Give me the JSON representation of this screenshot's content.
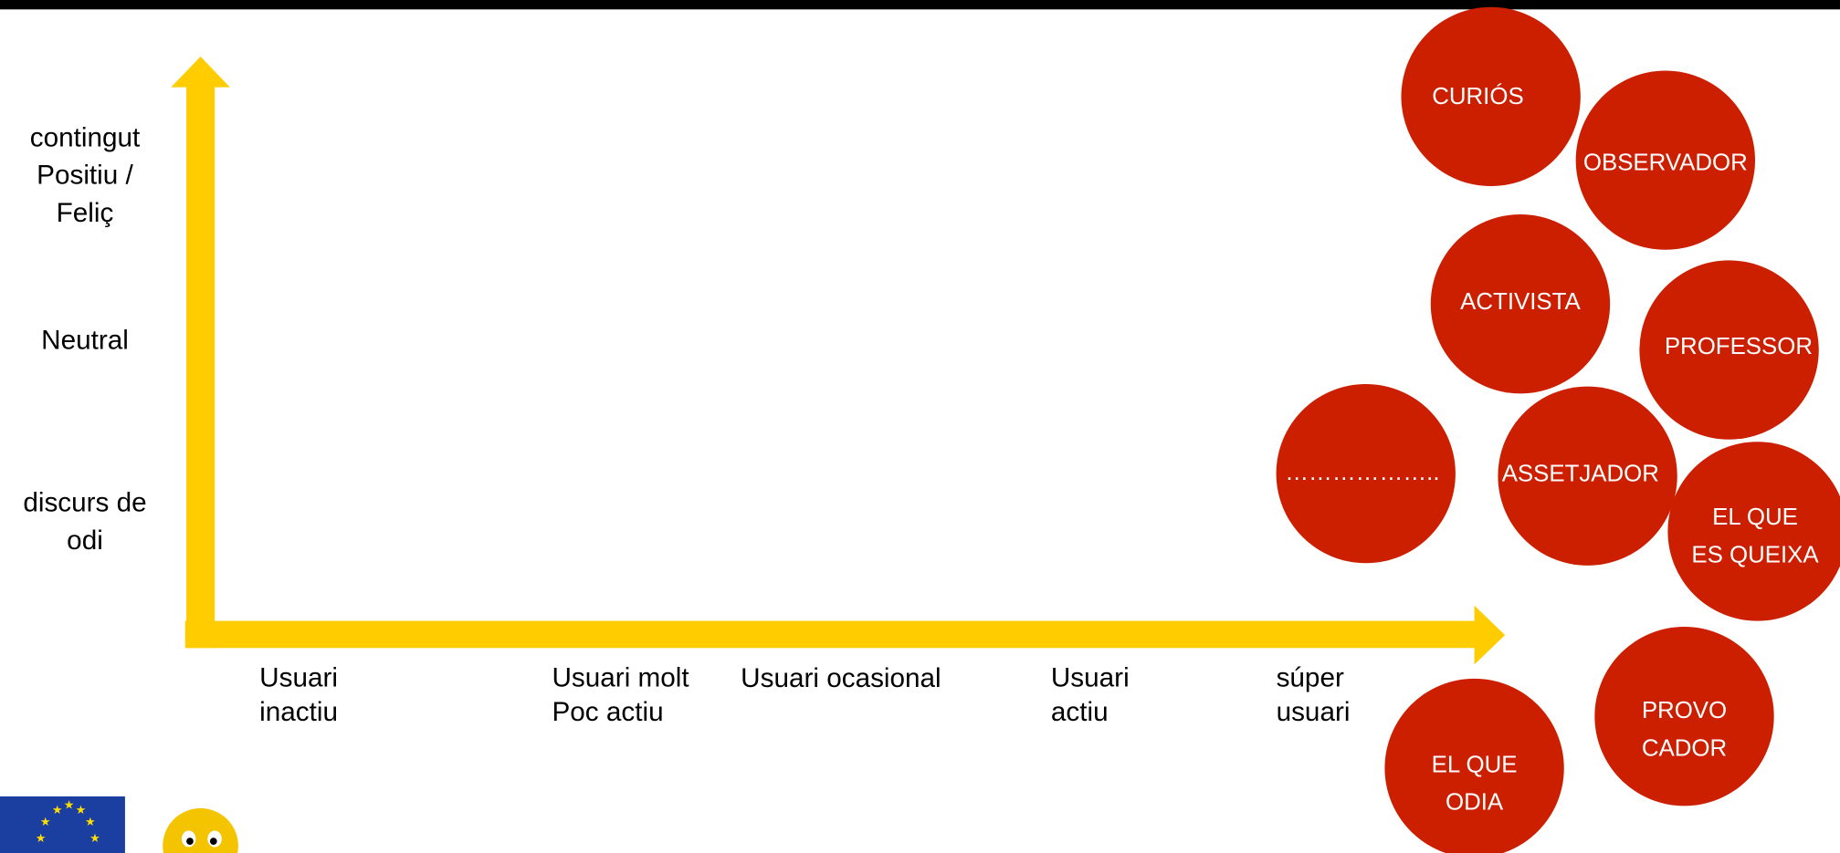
{
  "y_axis_labels": [
    {
      "lines": [
        "contingut",
        "Positiu /",
        "Feliç"
      ]
    },
    {
      "lines": [
        "Neutral"
      ]
    },
    {
      "lines": [
        "discurs de",
        "odi"
      ]
    }
  ],
  "x_axis_labels": [
    {
      "lines": [
        "Usuari",
        "inactiu"
      ]
    },
    {
      "lines": [
        "Usuari molt",
        "Poc actiu"
      ]
    },
    {
      "lines": [
        "Usuari ocasional"
      ]
    },
    {
      "lines": [
        "Usuari",
        "actiu"
      ]
    },
    {
      "lines": [
        "súper",
        "usuari"
      ]
    }
  ],
  "roles": [
    {
      "lines": [
        "CURIÓS"
      ]
    },
    {
      "lines": [
        "OBSERVADOR"
      ]
    },
    {
      "lines": [
        "ACTIVISTA"
      ]
    },
    {
      "lines": [
        "PROFESSOR"
      ]
    },
    {
      "lines": [
        "……………….."
      ]
    },
    {
      "lines": [
        "ASSETJADOR"
      ]
    },
    {
      "lines": [
        "EL QUE",
        "ES QUEIXA"
      ]
    },
    {
      "lines": [
        "PROVO",
        "CADOR"
      ]
    },
    {
      "lines": [
        "EL QUE",
        "ODIA"
      ]
    }
  ]
}
